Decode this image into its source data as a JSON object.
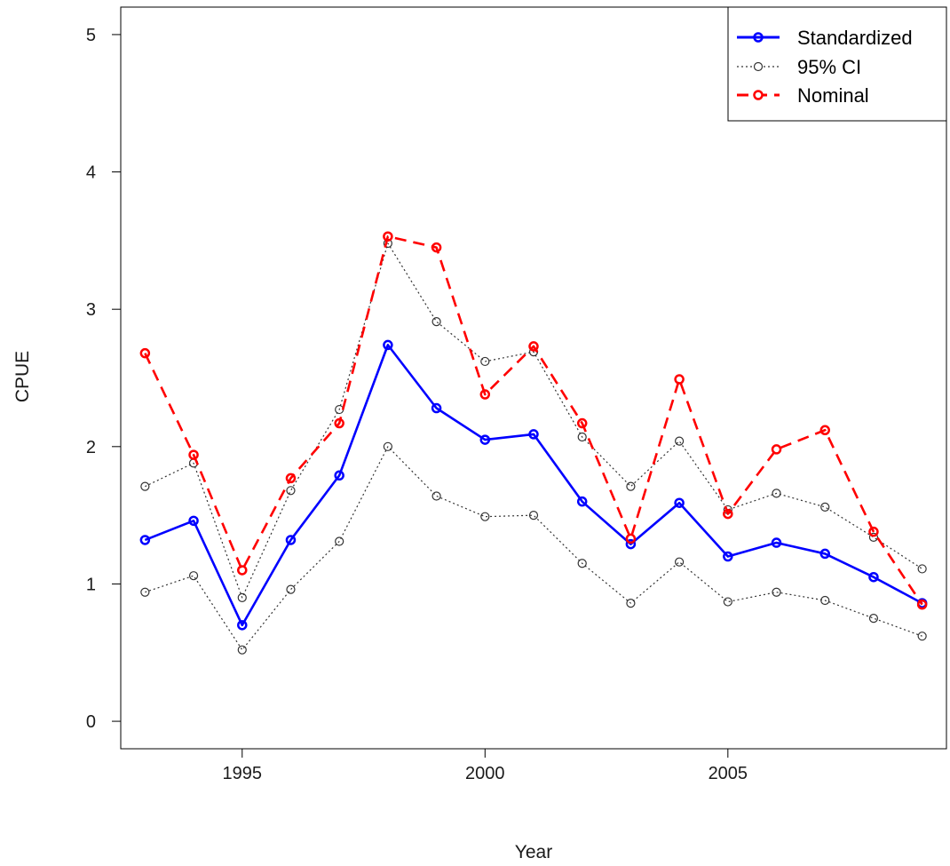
{
  "chart_data": {
    "type": "line",
    "title": "",
    "xlabel": "Year",
    "ylabel": "CPUE",
    "xlim": [
      1992.5,
      2009.5
    ],
    "ylim": [
      -0.2,
      5.2
    ],
    "x_ticks": [
      "1995",
      "2000",
      "2005"
    ],
    "y_ticks": [
      "0",
      "1",
      "2",
      "3",
      "4",
      "5"
    ],
    "x": [
      1993,
      1994,
      1995,
      1996,
      1997,
      1998,
      1999,
      2000,
      2001,
      2002,
      2003,
      2004,
      2005,
      2006,
      2007,
      2008,
      2009
    ],
    "legend_position": "top-right",
    "grid": false,
    "series": [
      {
        "name": "Standardized",
        "color": "#0000ff",
        "style": "solid",
        "values": [
          1.32,
          1.46,
          0.7,
          1.32,
          1.79,
          2.74,
          2.28,
          2.05,
          2.09,
          1.6,
          1.29,
          1.59,
          1.2,
          1.3,
          1.22,
          1.05,
          0.86
        ]
      },
      {
        "name": "95% CI",
        "color": "#333333",
        "style": "dotted",
        "upper": [
          1.71,
          1.88,
          0.9,
          1.68,
          2.27,
          3.48,
          2.91,
          2.62,
          2.69,
          2.07,
          1.71,
          2.04,
          1.54,
          1.66,
          1.56,
          1.34,
          1.11
        ],
        "lower": [
          0.94,
          1.06,
          0.52,
          0.96,
          1.31,
          2.0,
          1.64,
          1.49,
          1.5,
          1.15,
          0.86,
          1.16,
          0.87,
          0.94,
          0.88,
          0.75,
          0.62
        ]
      },
      {
        "name": "Nominal",
        "color": "#ff0000",
        "style": "dashed",
        "values": [
          2.68,
          1.94,
          1.1,
          1.77,
          2.17,
          3.53,
          3.45,
          2.38,
          2.73,
          2.17,
          1.33,
          2.49,
          1.51,
          1.98,
          2.12,
          1.38,
          0.85
        ]
      }
    ]
  }
}
